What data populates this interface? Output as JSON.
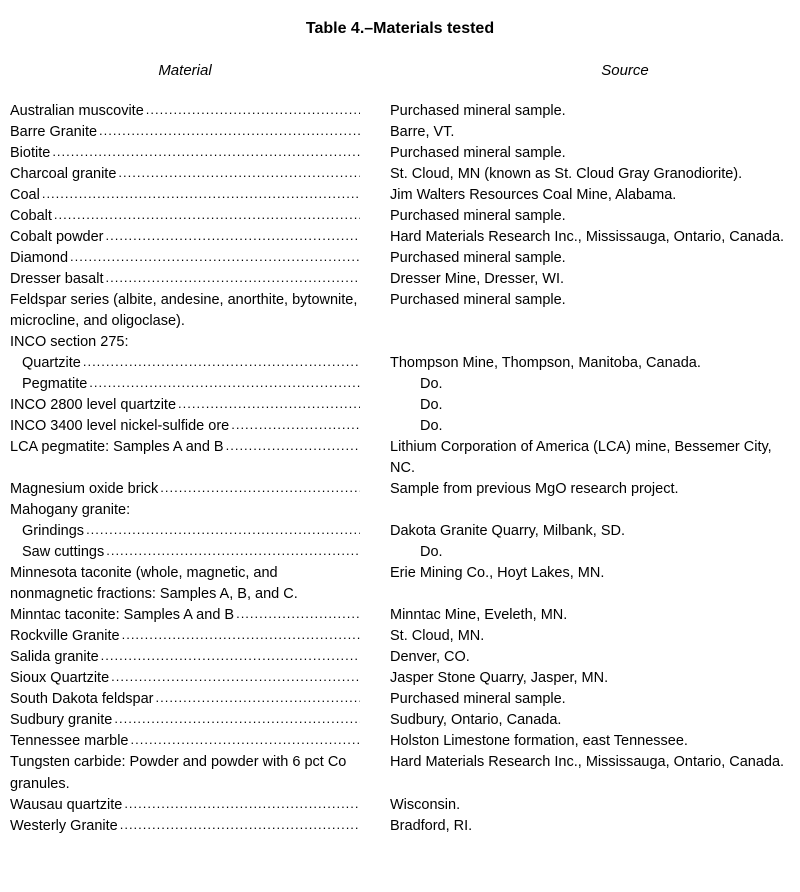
{
  "table": {
    "title": "Table 4.–Materials tested",
    "headers": {
      "material": "Material",
      "source": "Source"
    },
    "dots": "........................................................................",
    "rows": [
      {
        "material": "Australian muscovite",
        "source": "Purchased mineral sample.",
        "leader": true
      },
      {
        "material": "Barre Granite",
        "source": "Barre, VT.",
        "leader": true
      },
      {
        "material": "Biotite",
        "source": "Purchased mineral sample.",
        "leader": true
      },
      {
        "material": "Charcoal granite",
        "source": "St. Cloud, MN (known as St. Cloud Gray Granodiorite).",
        "leader": true
      },
      {
        "material": "Coal",
        "source": "Jim Walters Resources Coal Mine, Alabama.",
        "leader": true
      },
      {
        "material": "Cobalt",
        "source": "Purchased mineral sample.",
        "leader": true
      },
      {
        "material": "Cobalt powder",
        "source": "Hard Materials Research Inc., Mississauga, Ontario, Canada.",
        "leader": true
      },
      {
        "material": "Diamond",
        "source": "Purchased mineral sample.",
        "leader": true
      },
      {
        "material": "Dresser basalt",
        "source": "Dresser Mine, Dresser, WI.",
        "leader": true
      },
      {
        "material": "Feldspar series (albite, andesine, anorthite, bytownite, microcline, and oligoclase).",
        "source": "Purchased mineral sample.",
        "leader": false,
        "wrap": true
      },
      {
        "material": "INCO section 275:",
        "source": "",
        "leader": false
      },
      {
        "material": "Quartzite",
        "source": "Thompson Mine, Thompson, Manitoba, Canada.",
        "leader": true,
        "indent": true
      },
      {
        "material": "Pegmatite",
        "source": "Do.",
        "leader": true,
        "indent": true,
        "do_indent": true
      },
      {
        "material": "INCO 2800 level quartzite",
        "source": "Do.",
        "leader": true,
        "do_indent": true
      },
      {
        "material": "INCO 3400 level nickel-sulfide ore",
        "source": "Do.",
        "leader": true,
        "do_indent": true
      },
      {
        "material": "LCA pegmatite:  Samples A and B",
        "source": "Lithium Corporation of America (LCA) mine, Bessemer City, NC.",
        "leader": true
      },
      {
        "material": "Magnesium oxide brick",
        "source": "Sample from previous MgO research project.",
        "leader": true
      },
      {
        "material": "Mahogany granite:",
        "source": "",
        "leader": false
      },
      {
        "material": "Grindings",
        "source": "Dakota Granite Quarry, Milbank, SD.",
        "leader": true,
        "indent": true
      },
      {
        "material": "Saw cuttings",
        "source": "Do.",
        "leader": true,
        "indent": true,
        "do_indent": true
      },
      {
        "material": "Minnesota taconite (whole, magnetic, and nonmagnetic fractions:  Samples A, B, and C.",
        "source": "Erie Mining Co., Hoyt Lakes, MN.",
        "leader": false,
        "wrap": true
      },
      {
        "material": "Minntac taconite:  Samples A and B",
        "source": "Minntac Mine, Eveleth, MN.",
        "leader": true
      },
      {
        "material": "Rockville Granite",
        "source": "St. Cloud, MN.",
        "leader": true
      },
      {
        "material": "Salida granite",
        "source": "Denver, CO.",
        "leader": true
      },
      {
        "material": "Sioux Quartzite",
        "source": "Jasper Stone Quarry, Jasper, MN.",
        "leader": true
      },
      {
        "material": "South Dakota feldspar",
        "source": "Purchased mineral sample.",
        "leader": true
      },
      {
        "material": "Sudbury granite",
        "source": "Sudbury, Ontario, Canada.",
        "leader": true
      },
      {
        "material": "Tennessee marble",
        "source": "Holston Limestone formation, east Tennessee.",
        "leader": true
      },
      {
        "material": "Tungsten carbide:  Powder and powder with 6 pct Co granules.",
        "source": "Hard Materials Research Inc., Mississauga, Ontario, Canada.",
        "leader": false,
        "wrap": true
      },
      {
        "material": "Wausau quartzite",
        "source": "Wisconsin.",
        "leader": true
      },
      {
        "material": "Westerly Granite",
        "source": "Bradford, RI.",
        "leader": true
      }
    ],
    "styling": {
      "font_family": "Arial, Helvetica, sans-serif",
      "title_fontsize": 16,
      "body_fontsize": 14.5,
      "material_col_width": 350,
      "background_color": "#ffffff",
      "text_color": "#000000",
      "line_height": 1.45
    }
  }
}
